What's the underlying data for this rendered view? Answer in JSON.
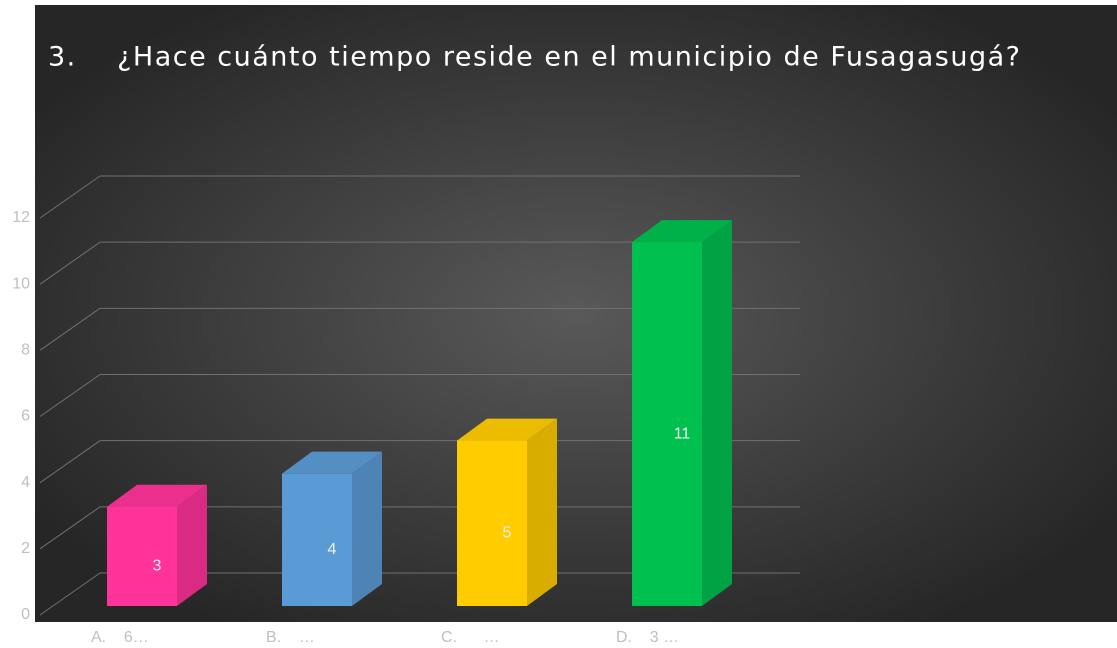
{
  "chart_data": {
    "type": "bar3d",
    "title": "3.    ¿Hace cuánto tiempo reside en el municipio de Fusagasugá?",
    "categories": [
      "A.    6…",
      "B.    …",
      "C.      …",
      "D.    3 …"
    ],
    "values": [
      3,
      4,
      5,
      11
    ],
    "colors": [
      "#ff3399",
      "#5b9bd5",
      "#ffcc00",
      "#00c050"
    ],
    "ylim": [
      0,
      12
    ],
    "yticks": [
      0,
      2,
      4,
      6,
      8,
      10,
      12
    ],
    "grid": true
  }
}
